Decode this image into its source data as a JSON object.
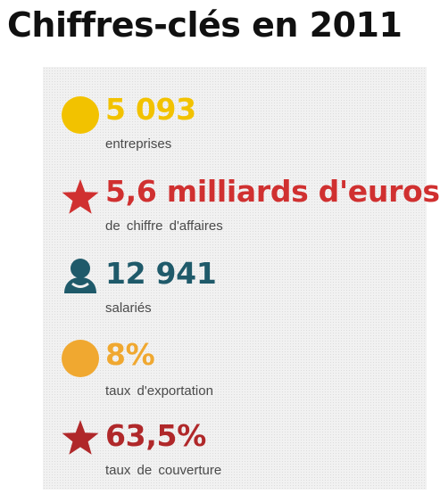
{
  "title": "Chiffres-clés en 2011",
  "stats": [
    {
      "icon": "yellow-circle-icon",
      "color": "#f2c200",
      "value": "5 093",
      "label": "entreprises"
    },
    {
      "icon": "red-star-icon",
      "color": "#d03030",
      "value": "5,6 milliards d'euros",
      "label": "de chiffre d'affaires"
    },
    {
      "icon": "person-icon",
      "color": "#1f5a6a",
      "value": "12 941",
      "label": "salariés"
    },
    {
      "icon": "orange-circle-icon",
      "color": "#f0a830",
      "value": "8%",
      "label": "taux d'exportation"
    },
    {
      "icon": "dark-red-star-icon",
      "color": "#b0282a",
      "value": "63,5%",
      "label": "taux de couverture"
    }
  ]
}
